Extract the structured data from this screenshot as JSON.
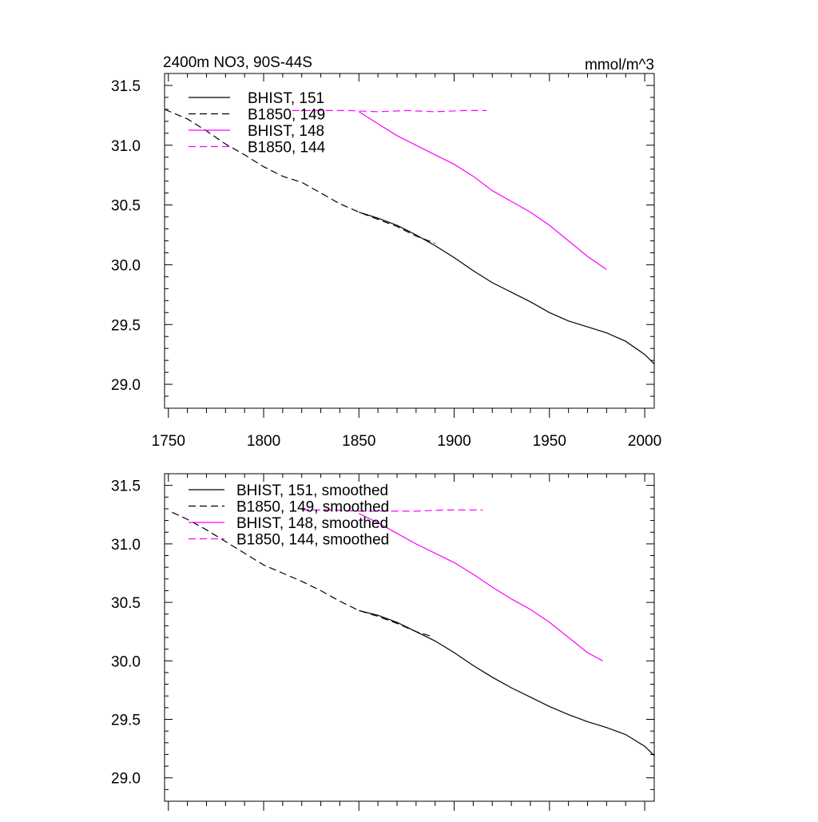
{
  "title_left": "2400m NO3, 90S-44S",
  "title_right": "mmol/m^3",
  "chart_data": [
    {
      "type": "line",
      "panel": "top",
      "xlim": [
        1748,
        2005
      ],
      "ylim": [
        28.8,
        31.6
      ],
      "yticks": [
        29.0,
        29.5,
        30.0,
        30.5,
        31.0,
        31.5
      ],
      "ytick_labels": [
        "29.0",
        "29.5",
        "30.0",
        "30.5",
        "31.0",
        "31.5"
      ],
      "xticks": [
        1750,
        1800,
        1850,
        1900,
        1950,
        2000
      ],
      "xtick_labels": [
        "1750",
        "1800",
        "1850",
        "1900",
        "1950",
        "2000"
      ],
      "legend": "top-left",
      "series": [
        {
          "name": "BHIST, 151",
          "color": "#000000",
          "dash": "solid",
          "x": [
            1850,
            1860,
            1870,
            1880,
            1890,
            1900,
            1910,
            1920,
            1930,
            1940,
            1950,
            1960,
            1970,
            1980,
            1990,
            2000,
            2005
          ],
          "y": [
            30.44,
            30.39,
            30.33,
            30.25,
            30.16,
            30.06,
            29.95,
            29.85,
            29.77,
            29.69,
            29.6,
            29.53,
            29.48,
            29.43,
            29.36,
            29.25,
            29.17
          ]
        },
        {
          "name": "B1850, 149",
          "color": "#000000",
          "dash": "dashed",
          "x": [
            1748,
            1760,
            1770,
            1780,
            1790,
            1800,
            1810,
            1820,
            1830,
            1840,
            1850,
            1860,
            1870,
            1880,
            1890
          ],
          "y": [
            31.3,
            31.22,
            31.12,
            31.01,
            30.92,
            30.82,
            30.74,
            30.69,
            30.6,
            30.51,
            30.44,
            30.38,
            30.32,
            30.24,
            30.18
          ]
        },
        {
          "name": "BHIST, 148",
          "color": "#ff00ff",
          "dash": "solid",
          "x": [
            1850,
            1860,
            1870,
            1880,
            1890,
            1900,
            1910,
            1920,
            1930,
            1940,
            1950,
            1960,
            1970,
            1980
          ],
          "y": [
            31.28,
            31.18,
            31.08,
            31.0,
            30.92,
            30.84,
            30.74,
            30.62,
            30.53,
            30.44,
            30.33,
            30.2,
            30.07,
            29.96
          ]
        },
        {
          "name": "B1850, 144",
          "color": "#ff00ff",
          "dash": "dashed",
          "x": [
            1815,
            1830,
            1845,
            1860,
            1875,
            1890,
            1905,
            1917
          ],
          "y": [
            31.29,
            31.29,
            31.29,
            31.28,
            31.29,
            31.28,
            31.29,
            31.29
          ]
        }
      ]
    },
    {
      "type": "line",
      "panel": "bottom",
      "xlim": [
        1748,
        2005
      ],
      "ylim": [
        28.8,
        31.6
      ],
      "yticks": [
        29.0,
        29.5,
        30.0,
        30.5,
        31.0,
        31.5
      ],
      "ytick_labels": [
        "29.0",
        "29.5",
        "30.0",
        "30.5",
        "31.0",
        "31.5"
      ],
      "xticks": [
        1750,
        1800,
        1850,
        1900,
        1950,
        2000
      ],
      "xtick_labels": [],
      "legend": "top-left",
      "series": [
        {
          "name": "BHIST, 151, smoothed",
          "color": "#000000",
          "dash": "solid",
          "x": [
            1850,
            1860,
            1870,
            1880,
            1890,
            1900,
            1910,
            1920,
            1930,
            1940,
            1950,
            1960,
            1970,
            1980,
            1990,
            2000,
            2005
          ],
          "y": [
            30.43,
            30.39,
            30.33,
            30.25,
            30.17,
            30.07,
            29.96,
            29.86,
            29.77,
            29.69,
            29.61,
            29.54,
            29.48,
            29.43,
            29.37,
            29.27,
            29.19
          ]
        },
        {
          "name": "B1850, 149, smoothed",
          "color": "#000000",
          "dash": "dashed",
          "x": [
            1752,
            1760,
            1770,
            1780,
            1790,
            1800,
            1810,
            1820,
            1830,
            1840,
            1850,
            1860,
            1870,
            1880,
            1888
          ],
          "y": [
            31.27,
            31.21,
            31.12,
            31.02,
            30.92,
            30.82,
            30.75,
            30.68,
            30.6,
            30.51,
            30.43,
            30.38,
            30.32,
            30.25,
            30.21
          ]
        },
        {
          "name": "BHIST, 148, smoothed",
          "color": "#ff00ff",
          "dash": "solid",
          "x": [
            1850,
            1860,
            1870,
            1880,
            1890,
            1900,
            1910,
            1920,
            1930,
            1940,
            1950,
            1960,
            1970,
            1978
          ],
          "y": [
            31.26,
            31.18,
            31.09,
            31.0,
            30.92,
            30.84,
            30.74,
            30.63,
            30.53,
            30.44,
            30.33,
            30.2,
            30.07,
            30.0
          ]
        },
        {
          "name": "B1850, 144, smoothed",
          "color": "#ff00ff",
          "dash": "dashed",
          "x": [
            1820,
            1835,
            1850,
            1865,
            1880,
            1895,
            1905,
            1915
          ],
          "y": [
            31.29,
            31.29,
            31.28,
            31.28,
            31.28,
            31.29,
            31.29,
            31.29
          ]
        }
      ]
    }
  ]
}
